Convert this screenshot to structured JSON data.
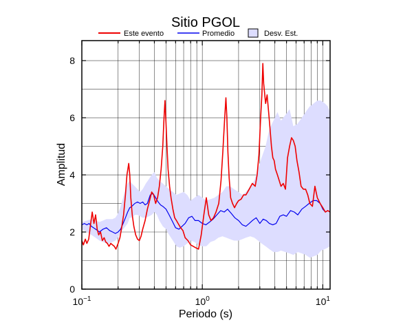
{
  "chart_data": {
    "type": "line",
    "title": "Sitio PGOL",
    "xlabel": "Periodo (s)",
    "ylabel": "Amplitud",
    "xscale": "log",
    "xlim": [
      0.1,
      11.5
    ],
    "ylim": [
      0,
      8.7
    ],
    "yticks": [
      0,
      2,
      4,
      6,
      8
    ],
    "xtick_labels": [
      {
        "value": 0.1,
        "base": "10",
        "exp": "−1"
      },
      {
        "value": 1,
        "base": "10",
        "exp": "0"
      },
      {
        "value": 10,
        "base": "10",
        "exp": "1"
      }
    ],
    "grid": true,
    "legend_position": "top",
    "legend": [
      "Este evento",
      "Promedio",
      "Desv. Est."
    ],
    "colors": {
      "este_evento": "#ee0000",
      "promedio": "#0000ee",
      "desv_est": "#ddddff"
    },
    "series": [
      {
        "name": "Este evento",
        "x": [
          0.1,
          0.103,
          0.107,
          0.11,
          0.114,
          0.118,
          0.122,
          0.126,
          0.13,
          0.134,
          0.138,
          0.143,
          0.148,
          0.153,
          0.158,
          0.163,
          0.168,
          0.174,
          0.18,
          0.186,
          0.192,
          0.2,
          0.207,
          0.215,
          0.222,
          0.23,
          0.237,
          0.245,
          0.25,
          0.255,
          0.262,
          0.27,
          0.28,
          0.29,
          0.3,
          0.31,
          0.32,
          0.335,
          0.35,
          0.365,
          0.38,
          0.395,
          0.41,
          0.425,
          0.44,
          0.455,
          0.47,
          0.48,
          0.49,
          0.5,
          0.51,
          0.52,
          0.535,
          0.55,
          0.57,
          0.59,
          0.61,
          0.63,
          0.66,
          0.69,
          0.72,
          0.76,
          0.8,
          0.84,
          0.88,
          0.93,
          0.98,
          1.03,
          1.08,
          1.13,
          1.18,
          1.24,
          1.3,
          1.37,
          1.43,
          1.48,
          1.53,
          1.57,
          1.6,
          1.63,
          1.67,
          1.72,
          1.78,
          1.85,
          1.93,
          2.0,
          2.1,
          2.2,
          2.3,
          2.45,
          2.6,
          2.75,
          2.85,
          2.95,
          3.05,
          3.12,
          3.18,
          3.23,
          3.28,
          3.35,
          3.45,
          3.55,
          3.65,
          3.75,
          3.85,
          3.95,
          4.05,
          4.2,
          4.35,
          4.5,
          4.7,
          4.9,
          5.1,
          5.3,
          5.5,
          5.7,
          5.9,
          6.1,
          6.35,
          6.6,
          6.9,
          7.2,
          7.5,
          7.8,
          8.2,
          8.6,
          9.0,
          9.5,
          10.0,
          10.5,
          11.0,
          11.5
        ],
        "y": [
          1.7,
          1.55,
          1.75,
          1.6,
          1.75,
          2.25,
          2.7,
          2.3,
          2.6,
          2.1,
          1.9,
          2.0,
          1.7,
          1.8,
          1.65,
          1.6,
          1.5,
          1.6,
          1.55,
          1.5,
          1.4,
          1.6,
          1.8,
          2.2,
          2.6,
          3.3,
          4.0,
          4.4,
          4.0,
          3.2,
          2.6,
          2.2,
          1.9,
          1.75,
          1.7,
          1.85,
          2.1,
          2.4,
          2.8,
          3.1,
          3.4,
          3.3,
          3.0,
          3.2,
          3.6,
          4.2,
          5.0,
          5.9,
          6.6,
          5.8,
          4.9,
          4.2,
          3.6,
          3.2,
          2.8,
          2.5,
          2.4,
          2.3,
          2.15,
          2.05,
          1.8,
          1.7,
          1.55,
          1.5,
          1.45,
          1.4,
          1.9,
          2.6,
          3.2,
          2.6,
          2.4,
          2.5,
          2.7,
          3.0,
          3.8,
          4.8,
          5.9,
          6.7,
          6.0,
          4.8,
          3.9,
          3.2,
          3.0,
          2.85,
          3.0,
          3.1,
          3.15,
          3.3,
          3.3,
          3.5,
          3.7,
          3.6,
          4.0,
          4.7,
          6.0,
          6.8,
          7.9,
          7.2,
          6.9,
          6.5,
          6.8,
          6.2,
          5.6,
          5.0,
          4.6,
          4.5,
          4.2,
          4.0,
          3.8,
          3.6,
          3.7,
          3.5,
          4.6,
          5.0,
          5.3,
          5.2,
          5.0,
          4.5,
          4.1,
          3.6,
          3.5,
          3.5,
          3.3,
          3.0,
          2.9,
          3.6,
          3.2,
          3.0,
          2.85,
          2.7,
          2.75,
          2.7
        ]
      },
      {
        "name": "Promedio",
        "x": [
          0.1,
          0.105,
          0.11,
          0.115,
          0.12,
          0.13,
          0.14,
          0.15,
          0.16,
          0.17,
          0.18,
          0.19,
          0.2,
          0.21,
          0.22,
          0.23,
          0.24,
          0.25,
          0.26,
          0.275,
          0.29,
          0.305,
          0.32,
          0.335,
          0.35,
          0.37,
          0.39,
          0.41,
          0.43,
          0.45,
          0.47,
          0.5,
          0.53,
          0.56,
          0.6,
          0.64,
          0.68,
          0.72,
          0.77,
          0.82,
          0.87,
          0.93,
          1.0,
          1.07,
          1.15,
          1.23,
          1.32,
          1.42,
          1.52,
          1.62,
          1.74,
          1.86,
          2.0,
          2.15,
          2.3,
          2.45,
          2.6,
          2.8,
          3.0,
          3.2,
          3.4,
          3.6,
          3.85,
          4.1,
          4.4,
          4.7,
          5.0,
          5.4,
          5.8,
          6.2,
          6.7,
          7.2,
          7.7,
          8.3,
          8.9,
          9.5,
          10.0,
          10.5,
          11.0,
          11.5
        ],
        "y": [
          2.25,
          2.3,
          2.25,
          2.3,
          2.2,
          2.1,
          2.0,
          2.1,
          2.15,
          2.05,
          2.0,
          1.95,
          2.0,
          2.1,
          2.3,
          2.5,
          2.7,
          2.85,
          2.9,
          3.0,
          3.05,
          3.0,
          3.05,
          2.95,
          3.0,
          3.3,
          3.35,
          3.2,
          3.05,
          2.95,
          2.9,
          2.8,
          2.6,
          2.4,
          2.15,
          2.1,
          2.2,
          2.3,
          2.5,
          2.55,
          2.4,
          2.4,
          2.3,
          2.25,
          2.35,
          2.45,
          2.6,
          2.75,
          2.7,
          2.8,
          2.65,
          2.5,
          2.4,
          2.25,
          2.2,
          2.3,
          2.4,
          2.5,
          2.3,
          2.45,
          2.4,
          2.3,
          2.25,
          2.3,
          2.55,
          2.6,
          2.55,
          2.75,
          2.7,
          2.6,
          2.8,
          2.9,
          3.0,
          3.1,
          3.1,
          3.0,
          2.8,
          2.7,
          2.75,
          2.7
        ]
      },
      {
        "name": "Desv. Est.",
        "x": [
          0.1,
          0.11,
          0.12,
          0.13,
          0.14,
          0.15,
          0.16,
          0.17,
          0.18,
          0.19,
          0.2,
          0.21,
          0.22,
          0.23,
          0.24,
          0.25,
          0.26,
          0.275,
          0.29,
          0.305,
          0.32,
          0.34,
          0.36,
          0.38,
          0.4,
          0.42,
          0.44,
          0.47,
          0.5,
          0.53,
          0.57,
          0.61,
          0.65,
          0.7,
          0.75,
          0.8,
          0.86,
          0.93,
          1.0,
          1.08,
          1.17,
          1.26,
          1.36,
          1.47,
          1.58,
          1.7,
          1.83,
          2.0,
          2.15,
          2.3,
          2.5,
          2.7,
          2.9,
          3.1,
          3.35,
          3.6,
          3.9,
          4.2,
          4.5,
          4.9,
          5.3,
          5.7,
          6.2,
          6.7,
          7.2,
          7.8,
          8.4,
          9.0,
          9.7,
          10.4,
          11.0,
          11.5
        ],
        "lower": [
          2.1,
          2.0,
          1.9,
          1.8,
          1.7,
          1.65,
          1.6,
          1.6,
          1.65,
          1.7,
          1.8,
          2.0,
          2.1,
          2.2,
          2.3,
          2.5,
          2.5,
          2.6,
          2.6,
          2.55,
          2.5,
          2.5,
          2.55,
          2.6,
          2.7,
          2.6,
          2.4,
          2.2,
          2.1,
          1.9,
          1.7,
          1.5,
          1.45,
          1.5,
          1.6,
          1.7,
          1.65,
          1.55,
          1.5,
          1.5,
          1.65,
          1.7,
          1.8,
          1.85,
          1.8,
          1.75,
          1.7,
          1.7,
          1.75,
          1.8,
          1.85,
          1.8,
          1.7,
          1.6,
          1.5,
          1.4,
          1.3,
          1.3,
          1.35,
          1.3,
          1.25,
          1.2,
          1.3,
          1.25,
          1.2,
          1.1,
          1.15,
          1.2,
          1.35,
          1.4,
          1.45,
          1.5
        ],
        "upper": [
          2.35,
          2.4,
          2.45,
          2.4,
          2.35,
          2.4,
          2.45,
          2.45,
          2.45,
          2.5,
          2.65,
          2.9,
          3.2,
          3.5,
          3.7,
          3.8,
          3.7,
          3.6,
          3.5,
          3.4,
          3.5,
          3.7,
          3.85,
          4.0,
          4.1,
          3.9,
          3.8,
          3.7,
          3.6,
          3.5,
          3.4,
          3.3,
          3.35,
          3.4,
          3.3,
          3.1,
          3.2,
          3.3,
          3.2,
          3.1,
          3.15,
          3.2,
          3.3,
          3.4,
          3.6,
          3.6,
          3.5,
          3.4,
          3.3,
          3.4,
          3.6,
          3.8,
          4.2,
          4.6,
          5.0,
          5.6,
          5.9,
          6.2,
          5.9,
          6.1,
          6.3,
          5.7,
          5.8,
          6.0,
          6.2,
          6.4,
          6.5,
          6.6,
          6.6,
          6.5,
          6.4,
          6.2
        ]
      }
    ]
  }
}
